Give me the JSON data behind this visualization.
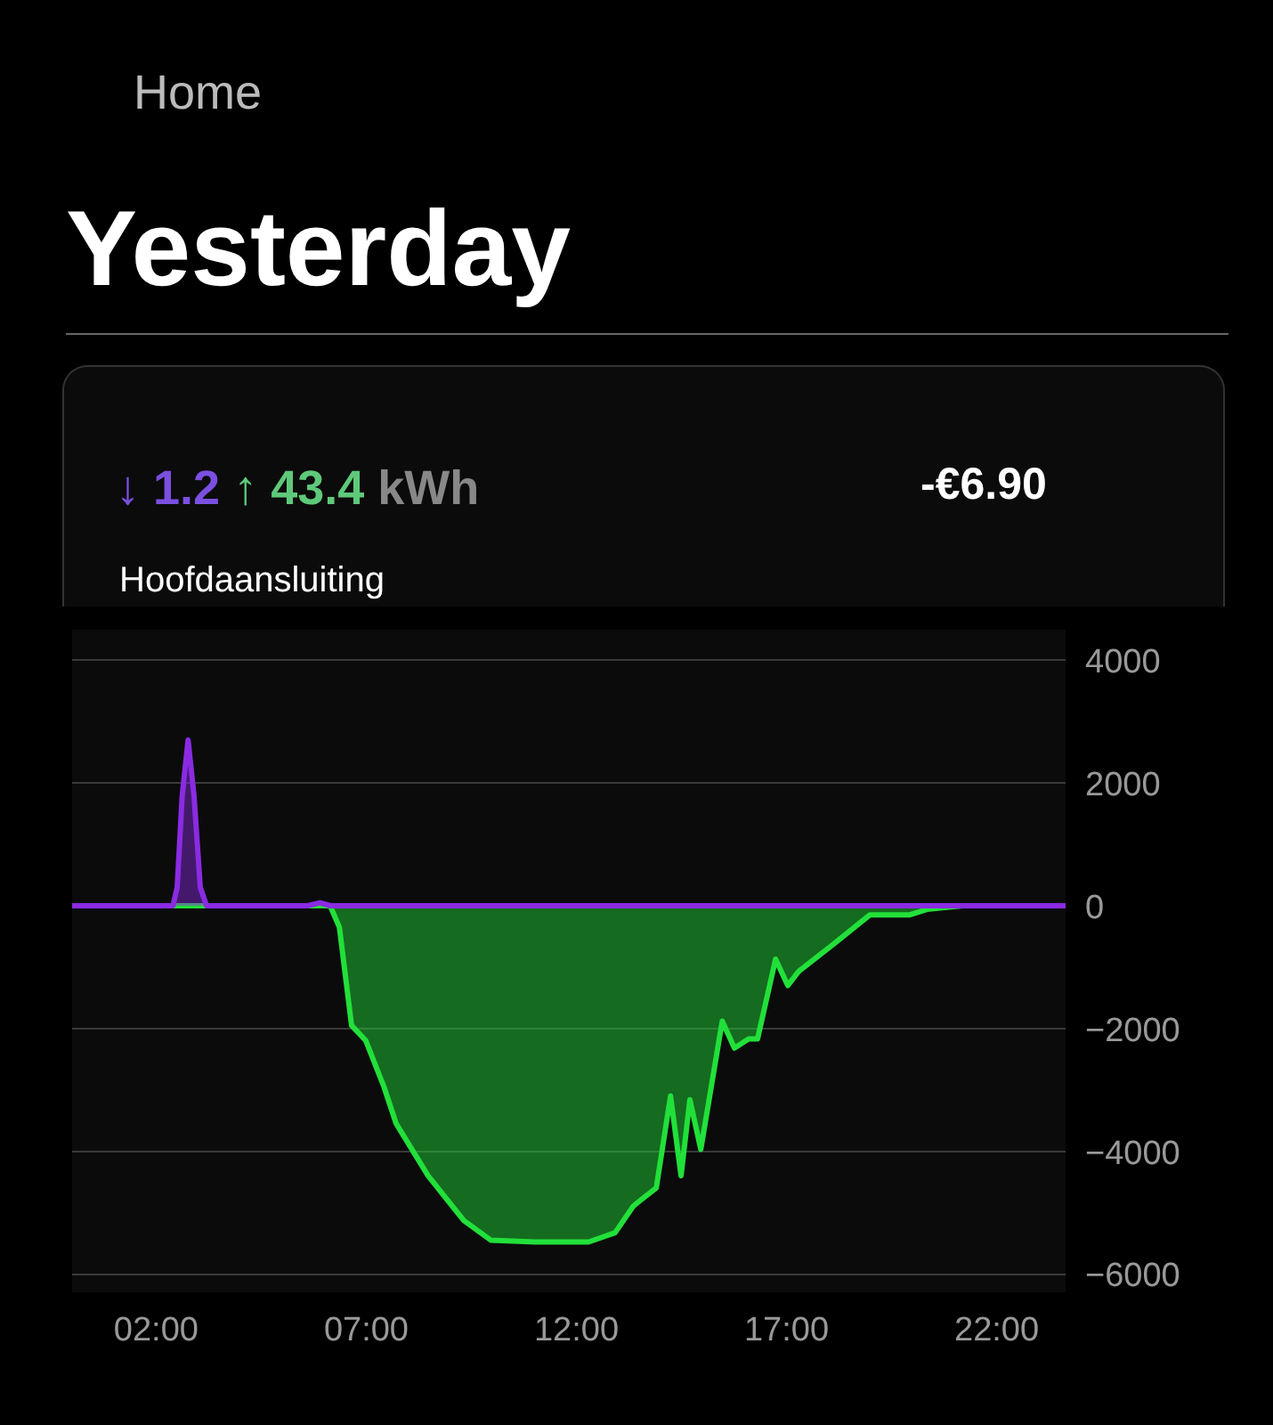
{
  "chart_data": {
    "type": "area",
    "title": "Yesterday",
    "subtitle": "Hoofdaansluiting",
    "annotations": [
      "Home",
      "↓ 1.2",
      "↑ 43.4",
      "kWh",
      "-€6.90"
    ],
    "xlim": [
      0,
      23.64
    ],
    "ylim": [
      -6300,
      4500
    ],
    "xticks": [
      {
        "value": 2,
        "label": "02:00"
      },
      {
        "value": 7,
        "label": "07:00"
      },
      {
        "value": 12,
        "label": "12:00"
      },
      {
        "value": 17,
        "label": "17:00"
      },
      {
        "value": 22,
        "label": "22:00"
      }
    ],
    "yticks": [
      -6000,
      -4000,
      -2000,
      0,
      2000,
      4000
    ],
    "grid": "y",
    "series": [
      {
        "color": "#22e03a",
        "x": [
          0,
          6.14,
          6.36,
          6.65,
          6.99,
          7.42,
          7.71,
          8.47,
          9.32,
          9.96,
          11.02,
          12.29,
          12.92,
          13.35,
          13.56,
          13.9,
          14.24,
          14.49,
          14.7,
          14.96,
          15.47,
          15.76,
          16.1,
          16.31,
          16.74,
          17.03,
          17.29,
          18.09,
          18.98,
          19.92,
          20.34,
          21.19,
          23.64
        ],
        "values": [
          0,
          0,
          -350,
          -1950,
          -2200,
          -2950,
          -3550,
          -4400,
          -5130,
          -5450,
          -5480,
          -5480,
          -5330,
          -4900,
          -4780,
          -4600,
          -3100,
          -4400,
          -3160,
          -3970,
          -1880,
          -2320,
          -2170,
          -2170,
          -870,
          -1300,
          -1070,
          -640,
          -150,
          -150,
          -60,
          0,
          0
        ]
      },
      {
        "color": "#8a2be2",
        "x": [
          0,
          2.4,
          2.5,
          2.62,
          2.76,
          2.9,
          3.05,
          3.2,
          5.6,
          5.9,
          6.15,
          21.2,
          23.64
        ],
        "values": [
          0,
          0,
          300,
          1800,
          2700,
          1800,
          300,
          0,
          0,
          50,
          0,
          0,
          0
        ]
      }
    ]
  }
}
